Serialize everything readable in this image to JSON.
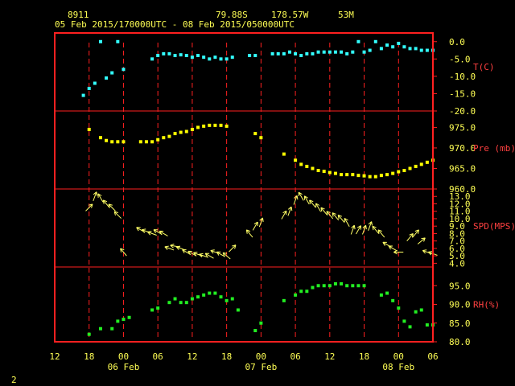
{
  "header": {
    "station_id": "8911",
    "latitude": "79.88S",
    "longitude": "178.57W",
    "elevation": "53M",
    "time_range": "05 Feb 2015/170000UTC - 08 Feb 2015/050000UTC"
  },
  "corner_label": "2",
  "colors": {
    "header_text": "#ffff55",
    "frame": "#ff2020",
    "grid": "#ff2020",
    "axis_text": "#ffff55",
    "right_labels": "#ff4040",
    "temperature": "#33ffff",
    "pressure": "#ffff00",
    "wind": "#ffff66",
    "humidity": "#22ee22"
  },
  "chart_data": {
    "type": "scatter",
    "x_units": "hours since 05 Feb 2015 12:00 UTC",
    "xlim": [
      12,
      78
    ],
    "x_tick_labels": [
      "12",
      "18",
      "00",
      "06",
      "12",
      "18",
      "00",
      "06",
      "12",
      "18",
      "00",
      "06"
    ],
    "day_labels": [
      {
        "x": 24,
        "text": "06 Feb"
      },
      {
        "x": 48,
        "text": "07 Feb"
      },
      {
        "x": 72,
        "text": "08 Feb"
      }
    ],
    "panels": [
      {
        "key": "temperature",
        "ylabel": "T(C)",
        "ylim": [
          -20,
          2.5
        ],
        "y_ticks": [
          0,
          -5,
          -10,
          -15,
          -20
        ],
        "y_tick_labels": [
          "0.0",
          "-5.0",
          "-10.0",
          "-15.0",
          "-20.0"
        ],
        "points": [
          {
            "x": 17,
            "y": -15.5
          },
          {
            "x": 18,
            "y": -13.5
          },
          {
            "x": 19,
            "y": -12.0
          },
          {
            "x": 20,
            "y": 0.0
          },
          {
            "x": 21,
            "y": -10.5
          },
          {
            "x": 22,
            "y": -9.0
          },
          {
            "x": 23,
            "y": 0.0
          },
          {
            "x": 24,
            "y": -8.0
          },
          {
            "x": 29,
            "y": -5.0
          },
          {
            "x": 30,
            "y": -4.0
          },
          {
            "x": 31,
            "y": -3.5
          },
          {
            "x": 32,
            "y": -3.5
          },
          {
            "x": 33,
            "y": -4.0
          },
          {
            "x": 34,
            "y": -3.8
          },
          {
            "x": 35,
            "y": -4.0
          },
          {
            "x": 36,
            "y": -4.5
          },
          {
            "x": 37,
            "y": -4.0
          },
          {
            "x": 38,
            "y": -4.5
          },
          {
            "x": 39,
            "y": -5.0
          },
          {
            "x": 40,
            "y": -4.5
          },
          {
            "x": 41,
            "y": -5.0
          },
          {
            "x": 42,
            "y": -5.0
          },
          {
            "x": 43,
            "y": -4.5
          },
          {
            "x": 46,
            "y": -4.0
          },
          {
            "x": 47,
            "y": -4.0
          },
          {
            "x": 50,
            "y": -3.5
          },
          {
            "x": 51,
            "y": -3.5
          },
          {
            "x": 52,
            "y": -3.5
          },
          {
            "x": 53,
            "y": -3.0
          },
          {
            "x": 54,
            "y": -3.5
          },
          {
            "x": 55,
            "y": -4.0
          },
          {
            "x": 56,
            "y": -3.5
          },
          {
            "x": 57,
            "y": -3.5
          },
          {
            "x": 58,
            "y": -3.0
          },
          {
            "x": 59,
            "y": -3.0
          },
          {
            "x": 60,
            "y": -3.0
          },
          {
            "x": 61,
            "y": -3.0
          },
          {
            "x": 62,
            "y": -3.0
          },
          {
            "x": 63,
            "y": -3.5
          },
          {
            "x": 64,
            "y": -3.0
          },
          {
            "x": 65,
            "y": 0.0
          },
          {
            "x": 66,
            "y": -3.0
          },
          {
            "x": 67,
            "y": -2.5
          },
          {
            "x": 68,
            "y": 0.0
          },
          {
            "x": 69,
            "y": -2.0
          },
          {
            "x": 70,
            "y": -1.0
          },
          {
            "x": 71,
            "y": -1.5
          },
          {
            "x": 72,
            "y": -0.5
          },
          {
            "x": 73,
            "y": -1.5
          },
          {
            "x": 74,
            "y": -2.0
          },
          {
            "x": 75,
            "y": -2.0
          },
          {
            "x": 76,
            "y": -2.5
          },
          {
            "x": 77,
            "y": -2.5
          },
          {
            "x": 78,
            "y": -2.5
          }
        ]
      },
      {
        "key": "pressure",
        "ylabel": "Pre (mb)",
        "ylim": [
          960,
          979
        ],
        "y_ticks": [
          975,
          970,
          965,
          960
        ],
        "y_tick_labels": [
          "975.0",
          "970.0",
          "965.0",
          "960.0"
        ],
        "points": [
          {
            "x": 18,
            "y": 974.5
          },
          {
            "x": 20,
            "y": 972.5
          },
          {
            "x": 21,
            "y": 971.8
          },
          {
            "x": 22,
            "y": 971.5
          },
          {
            "x": 23,
            "y": 971.5
          },
          {
            "x": 24,
            "y": 971.5
          },
          {
            "x": 27,
            "y": 971.5
          },
          {
            "x": 28,
            "y": 971.5
          },
          {
            "x": 29,
            "y": 971.5
          },
          {
            "x": 30,
            "y": 972.0
          },
          {
            "x": 31,
            "y": 972.5
          },
          {
            "x": 32,
            "y": 972.8
          },
          {
            "x": 33,
            "y": 973.5
          },
          {
            "x": 34,
            "y": 973.8
          },
          {
            "x": 35,
            "y": 974.0
          },
          {
            "x": 36,
            "y": 974.5
          },
          {
            "x": 37,
            "y": 975.0
          },
          {
            "x": 38,
            "y": 975.3
          },
          {
            "x": 39,
            "y": 975.5
          },
          {
            "x": 40,
            "y": 975.5
          },
          {
            "x": 41,
            "y": 975.5
          },
          {
            "x": 42,
            "y": 975.3
          },
          {
            "x": 47,
            "y": 973.5
          },
          {
            "x": 48,
            "y": 972.5
          },
          {
            "x": 52,
            "y": 968.5
          },
          {
            "x": 54,
            "y": 967.0
          },
          {
            "x": 55,
            "y": 966.0
          },
          {
            "x": 56,
            "y": 965.5
          },
          {
            "x": 57,
            "y": 965.0
          },
          {
            "x": 58,
            "y": 964.5
          },
          {
            "x": 59,
            "y": 964.3
          },
          {
            "x": 60,
            "y": 964.0
          },
          {
            "x": 61,
            "y": 963.8
          },
          {
            "x": 62,
            "y": 963.5
          },
          {
            "x": 63,
            "y": 963.5
          },
          {
            "x": 64,
            "y": 963.5
          },
          {
            "x": 65,
            "y": 963.3
          },
          {
            "x": 66,
            "y": 963.2
          },
          {
            "x": 67,
            "y": 963.0
          },
          {
            "x": 68,
            "y": 963.0
          },
          {
            "x": 69,
            "y": 963.3
          },
          {
            "x": 70,
            "y": 963.5
          },
          {
            "x": 71,
            "y": 963.8
          },
          {
            "x": 72,
            "y": 964.2
          },
          {
            "x": 73,
            "y": 964.5
          },
          {
            "x": 74,
            "y": 965.0
          },
          {
            "x": 75,
            "y": 965.5
          },
          {
            "x": 76,
            "y": 966.0
          },
          {
            "x": 77,
            "y": 966.5
          },
          {
            "x": 78,
            "y": 967.0
          }
        ]
      },
      {
        "key": "wind",
        "ylabel": "SPD(MPS)",
        "ylim": [
          3.5,
          14
        ],
        "y_ticks": [
          13,
          12,
          11,
          10,
          9,
          8,
          7,
          6,
          5,
          4
        ],
        "y_tick_labels": [
          "13.0",
          "12.0",
          "11.0",
          "10.0",
          "9.0",
          "8.0",
          "7.0",
          "6.0",
          "5.0",
          "4.0"
        ],
        "points": [
          {
            "x": 18,
            "y": 11.5,
            "dir": 45
          },
          {
            "x": 19,
            "y": 13.0,
            "dir": 20
          },
          {
            "x": 20,
            "y": 12.8,
            "dir": 330
          },
          {
            "x": 21,
            "y": 12.0,
            "dir": 320
          },
          {
            "x": 22,
            "y": 11.5,
            "dir": 315
          },
          {
            "x": 23,
            "y": 10.5,
            "dir": 315
          },
          {
            "x": 24,
            "y": 5.5,
            "dir": 320
          },
          {
            "x": 27,
            "y": 8.5,
            "dir": 300
          },
          {
            "x": 28,
            "y": 8.3,
            "dir": 290
          },
          {
            "x": 29,
            "y": 8.0,
            "dir": 290
          },
          {
            "x": 30,
            "y": 8.2,
            "dir": 300
          },
          {
            "x": 31,
            "y": 8.0,
            "dir": 300
          },
          {
            "x": 32,
            "y": 6.0,
            "dir": 290
          },
          {
            "x": 33,
            "y": 6.3,
            "dir": 280
          },
          {
            "x": 34,
            "y": 6.0,
            "dir": 290
          },
          {
            "x": 35,
            "y": 5.5,
            "dir": 300
          },
          {
            "x": 36,
            "y": 5.3,
            "dir": 300
          },
          {
            "x": 37,
            "y": 5.2,
            "dir": 290
          },
          {
            "x": 38,
            "y": 5.0,
            "dir": 290
          },
          {
            "x": 39,
            "y": 5.0,
            "dir": 300
          },
          {
            "x": 40,
            "y": 5.5,
            "dir": 290
          },
          {
            "x": 41,
            "y": 5.2,
            "dir": 300
          },
          {
            "x": 42,
            "y": 5.0,
            "dir": 310
          },
          {
            "x": 43,
            "y": 6.0,
            "dir": 45
          },
          {
            "x": 46,
            "y": 8.0,
            "dir": 320
          },
          {
            "x": 47,
            "y": 9.0,
            "dir": 30
          },
          {
            "x": 48,
            "y": 9.5,
            "dir": 20
          },
          {
            "x": 52,
            "y": 10.5,
            "dir": 30
          },
          {
            "x": 53,
            "y": 11.0,
            "dir": 20
          },
          {
            "x": 54,
            "y": 12.5,
            "dir": 20
          },
          {
            "x": 55,
            "y": 13.0,
            "dir": 330
          },
          {
            "x": 56,
            "y": 12.5,
            "dir": 330
          },
          {
            "x": 57,
            "y": 12.0,
            "dir": 320
          },
          {
            "x": 58,
            "y": 11.5,
            "dir": 330
          },
          {
            "x": 59,
            "y": 11.0,
            "dir": 320
          },
          {
            "x": 60,
            "y": 10.5,
            "dir": 320
          },
          {
            "x": 61,
            "y": 10.3,
            "dir": 320
          },
          {
            "x": 62,
            "y": 10.0,
            "dir": 320
          },
          {
            "x": 63,
            "y": 9.5,
            "dir": 330
          },
          {
            "x": 64,
            "y": 8.5,
            "dir": 20
          },
          {
            "x": 65,
            "y": 8.5,
            "dir": 30
          },
          {
            "x": 66,
            "y": 8.5,
            "dir": 20
          },
          {
            "x": 67,
            "y": 9.0,
            "dir": 20
          },
          {
            "x": 68,
            "y": 8.5,
            "dir": 320
          },
          {
            "x": 69,
            "y": 8.0,
            "dir": 320
          },
          {
            "x": 70,
            "y": 6.5,
            "dir": 300
          },
          {
            "x": 71,
            "y": 6.0,
            "dir": 300
          },
          {
            "x": 72,
            "y": 5.5,
            "dir": 270
          },
          {
            "x": 74,
            "y": 7.5,
            "dir": 40
          },
          {
            "x": 75,
            "y": 8.0,
            "dir": 40
          },
          {
            "x": 76,
            "y": 7.0,
            "dir": 50
          },
          {
            "x": 77,
            "y": 5.5,
            "dir": 290
          },
          {
            "x": 78,
            "y": 5.3,
            "dir": 290
          }
        ]
      },
      {
        "key": "humidity",
        "ylabel": "RH(%)",
        "ylim": [
          80,
          100
        ],
        "y_ticks": [
          95,
          90,
          85,
          80
        ],
        "y_tick_labels": [
          "95.0",
          "90.0",
          "85.0",
          "80.0"
        ],
        "points": [
          {
            "x": 18,
            "y": 82.0
          },
          {
            "x": 20,
            "y": 83.5
          },
          {
            "x": 22,
            "y": 83.5
          },
          {
            "x": 23,
            "y": 85.5
          },
          {
            "x": 24,
            "y": 86.0
          },
          {
            "x": 25,
            "y": 86.5
          },
          {
            "x": 29,
            "y": 88.5
          },
          {
            "x": 30,
            "y": 89.0
          },
          {
            "x": 32,
            "y": 90.5
          },
          {
            "x": 33,
            "y": 91.5
          },
          {
            "x": 34,
            "y": 90.5
          },
          {
            "x": 35,
            "y": 90.5
          },
          {
            "x": 36,
            "y": 91.5
          },
          {
            "x": 37,
            "y": 92.0
          },
          {
            "x": 38,
            "y": 92.5
          },
          {
            "x": 39,
            "y": 93.0
          },
          {
            "x": 40,
            "y": 93.0
          },
          {
            "x": 41,
            "y": 92.0
          },
          {
            "x": 42,
            "y": 91.0
          },
          {
            "x": 43,
            "y": 91.5
          },
          {
            "x": 44,
            "y": 88.5
          },
          {
            "x": 47,
            "y": 83.0
          },
          {
            "x": 48,
            "y": 85.0
          },
          {
            "x": 52,
            "y": 91.0
          },
          {
            "x": 54,
            "y": 92.5
          },
          {
            "x": 55,
            "y": 93.5
          },
          {
            "x": 56,
            "y": 93.5
          },
          {
            "x": 57,
            "y": 94.5
          },
          {
            "x": 58,
            "y": 95.0
          },
          {
            "x": 59,
            "y": 95.0
          },
          {
            "x": 60,
            "y": 95.0
          },
          {
            "x": 61,
            "y": 95.5
          },
          {
            "x": 62,
            "y": 95.5
          },
          {
            "x": 63,
            "y": 95.0
          },
          {
            "x": 64,
            "y": 95.0
          },
          {
            "x": 65,
            "y": 95.0
          },
          {
            "x": 66,
            "y": 95.0
          },
          {
            "x": 69,
            "y": 92.5
          },
          {
            "x": 70,
            "y": 93.0
          },
          {
            "x": 71,
            "y": 91.0
          },
          {
            "x": 72,
            "y": 89.0
          },
          {
            "x": 73,
            "y": 85.5
          },
          {
            "x": 74,
            "y": 84.0
          },
          {
            "x": 75,
            "y": 88.0
          },
          {
            "x": 76,
            "y": 88.5
          },
          {
            "x": 77,
            "y": 84.5
          },
          {
            "x": 78,
            "y": 84.5
          }
        ]
      }
    ]
  }
}
